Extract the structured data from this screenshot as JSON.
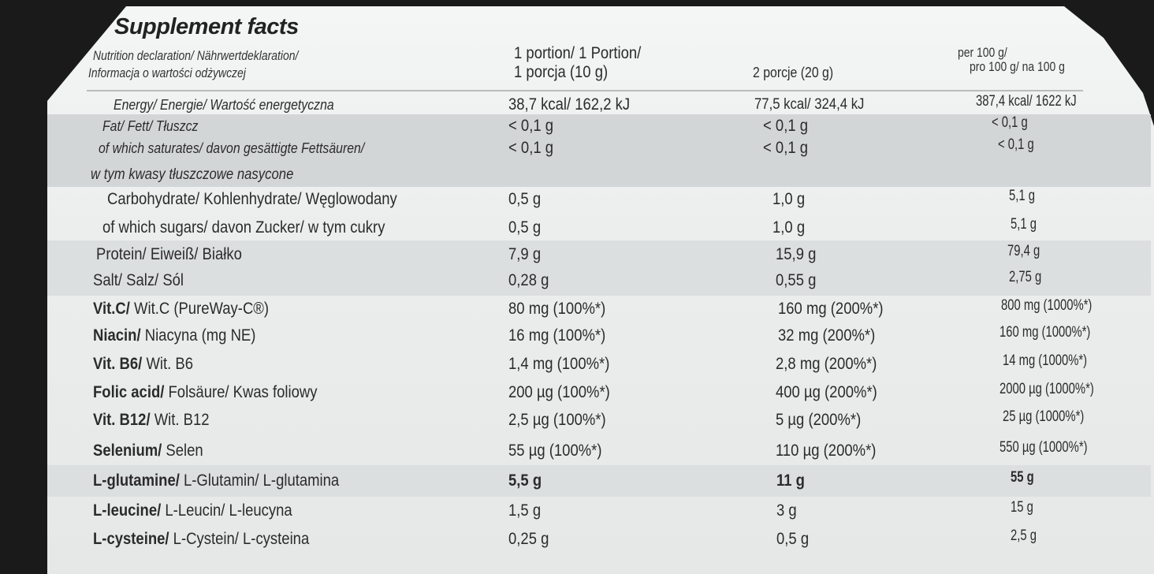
{
  "title": "Supplement facts",
  "header": {
    "declaration_line1": "Nutrition declaration/ Nährwertdeklaration/",
    "declaration_line2": "Informacja o wartości odżywczej",
    "col1_line1": "1 portion/ 1 Portion/",
    "col1_line2": "1 porcja (10 g)",
    "col2": "2 porcje (20 g)",
    "col3_line1": "per 100 g/",
    "col3_line2": "pro 100 g/ na 100 g"
  },
  "rows": [
    {
      "bold": "",
      "label": "Energy/ Energie/ Wartość energetyczna",
      "v1": "38,7 kcal/ 162,2 kJ",
      "v2": "77,5 kcal/ 324,4 kJ",
      "v3": "387,4 kcal/ 1622 kJ"
    },
    {
      "bold": "",
      "label": "Fat/ Fett/ Tłuszcz",
      "v1": "< 0,1 g",
      "v2": "< 0,1 g",
      "v3": "< 0,1 g"
    },
    {
      "bold": "",
      "label": "of which saturates/ davon gesättigte Fettsäuren/",
      "label2": "w tym kwasy tłuszczowe nasycone",
      "v1": "< 0,1 g",
      "v2": "< 0,1 g",
      "v3": "< 0,1 g"
    },
    {
      "bold": "",
      "label": "Carbohydrate/ Kohlenhydrate/ Węglowodany",
      "v1": "0,5 g",
      "v2": "1,0 g",
      "v3": "5,1 g"
    },
    {
      "bold": "",
      "label": "of which sugars/ davon Zucker/ w tym cukry",
      "v1": "0,5 g",
      "v2": "1,0 g",
      "v3": "5,1 g"
    },
    {
      "bold": "",
      "label": "Protein/ Eiweiß/ Białko",
      "v1": "7,9 g",
      "v2": "15,9 g",
      "v3": "79,4 g"
    },
    {
      "bold": "",
      "label": "Salt/ Salz/ Sól",
      "v1": "0,28 g",
      "v2": "0,55 g",
      "v3": "2,75 g"
    },
    {
      "bold": "Vit.C/",
      "label": " Wit.C (PureWay-C®)",
      "v1": "80 mg (100%*)",
      "v2": "160 mg (200%*)",
      "v3": "800 mg (1000%*)"
    },
    {
      "bold": "Niacin/",
      "label": " Niacyna (mg NE)",
      "v1": "16 mg (100%*)",
      "v2": "32 mg (200%*)",
      "v3": "160 mg (1000%*)"
    },
    {
      "bold": "Vit. B6/",
      "label": " Wit. B6",
      "v1": "1,4 mg (100%*)",
      "v2": "2,8 mg (200%*)",
      "v3": "14 mg (1000%*)"
    },
    {
      "bold": "Folic acid/",
      "label": " Folsäure/ Kwas foliowy",
      "v1": "200 µg (100%*)",
      "v2": "400 µg (200%*)",
      "v3": "2000 µg (1000%*)"
    },
    {
      "bold": "Vit. B12/",
      "label": " Wit. B12",
      "v1": "2,5 µg (100%*)",
      "v2": "5 µg (200%*)",
      "v3": "25 µg (1000%*)"
    },
    {
      "bold": "Selenium/",
      "label": " Selen",
      "v1": "55 µg (100%*)",
      "v2": "110 µg (200%*)",
      "v3": "550 µg (1000%*)"
    },
    {
      "bold": "L-glutamine/",
      "label": " L-Glutamin/ L-glutamina",
      "v1": "5,5 g",
      "v2": "11 g",
      "v3": "55 g",
      "values_bold": true
    },
    {
      "bold": "L-leucine/",
      "label": " L-Leucin/ L-leucyna",
      "v1": "1,5 g",
      "v2": "3 g",
      "v3": "15 g"
    },
    {
      "bold": "L-cysteine/",
      "label": " L-Cystein/ L-cysteina",
      "v1": "0,25 g",
      "v2": "0,5 g",
      "v3": "2,5 g"
    }
  ]
}
